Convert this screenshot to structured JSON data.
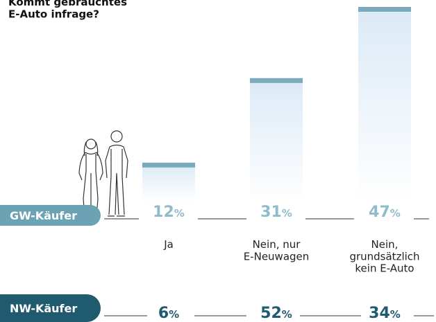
{
  "chart_data": {
    "type": "bar",
    "title": "Kommt gebrauchtes\nE-Auto infrage?",
    "categories": [
      "Ja",
      "Nein, nur\nE-Neuwagen",
      "Nein,\ngrundsätzlich\nkein E-Auto"
    ],
    "series": [
      {
        "name": "GW-Käufer",
        "color": "#6ba3b5",
        "values": [
          12,
          31,
          47
        ],
        "value_labels": [
          "12%",
          "31%",
          "47%"
        ]
      },
      {
        "name": "NW-Käufer",
        "color": "#1f5a6e",
        "values": [
          6,
          52,
          34
        ],
        "value_labels": [
          "6%",
          "52%",
          "34%"
        ]
      }
    ]
  }
}
